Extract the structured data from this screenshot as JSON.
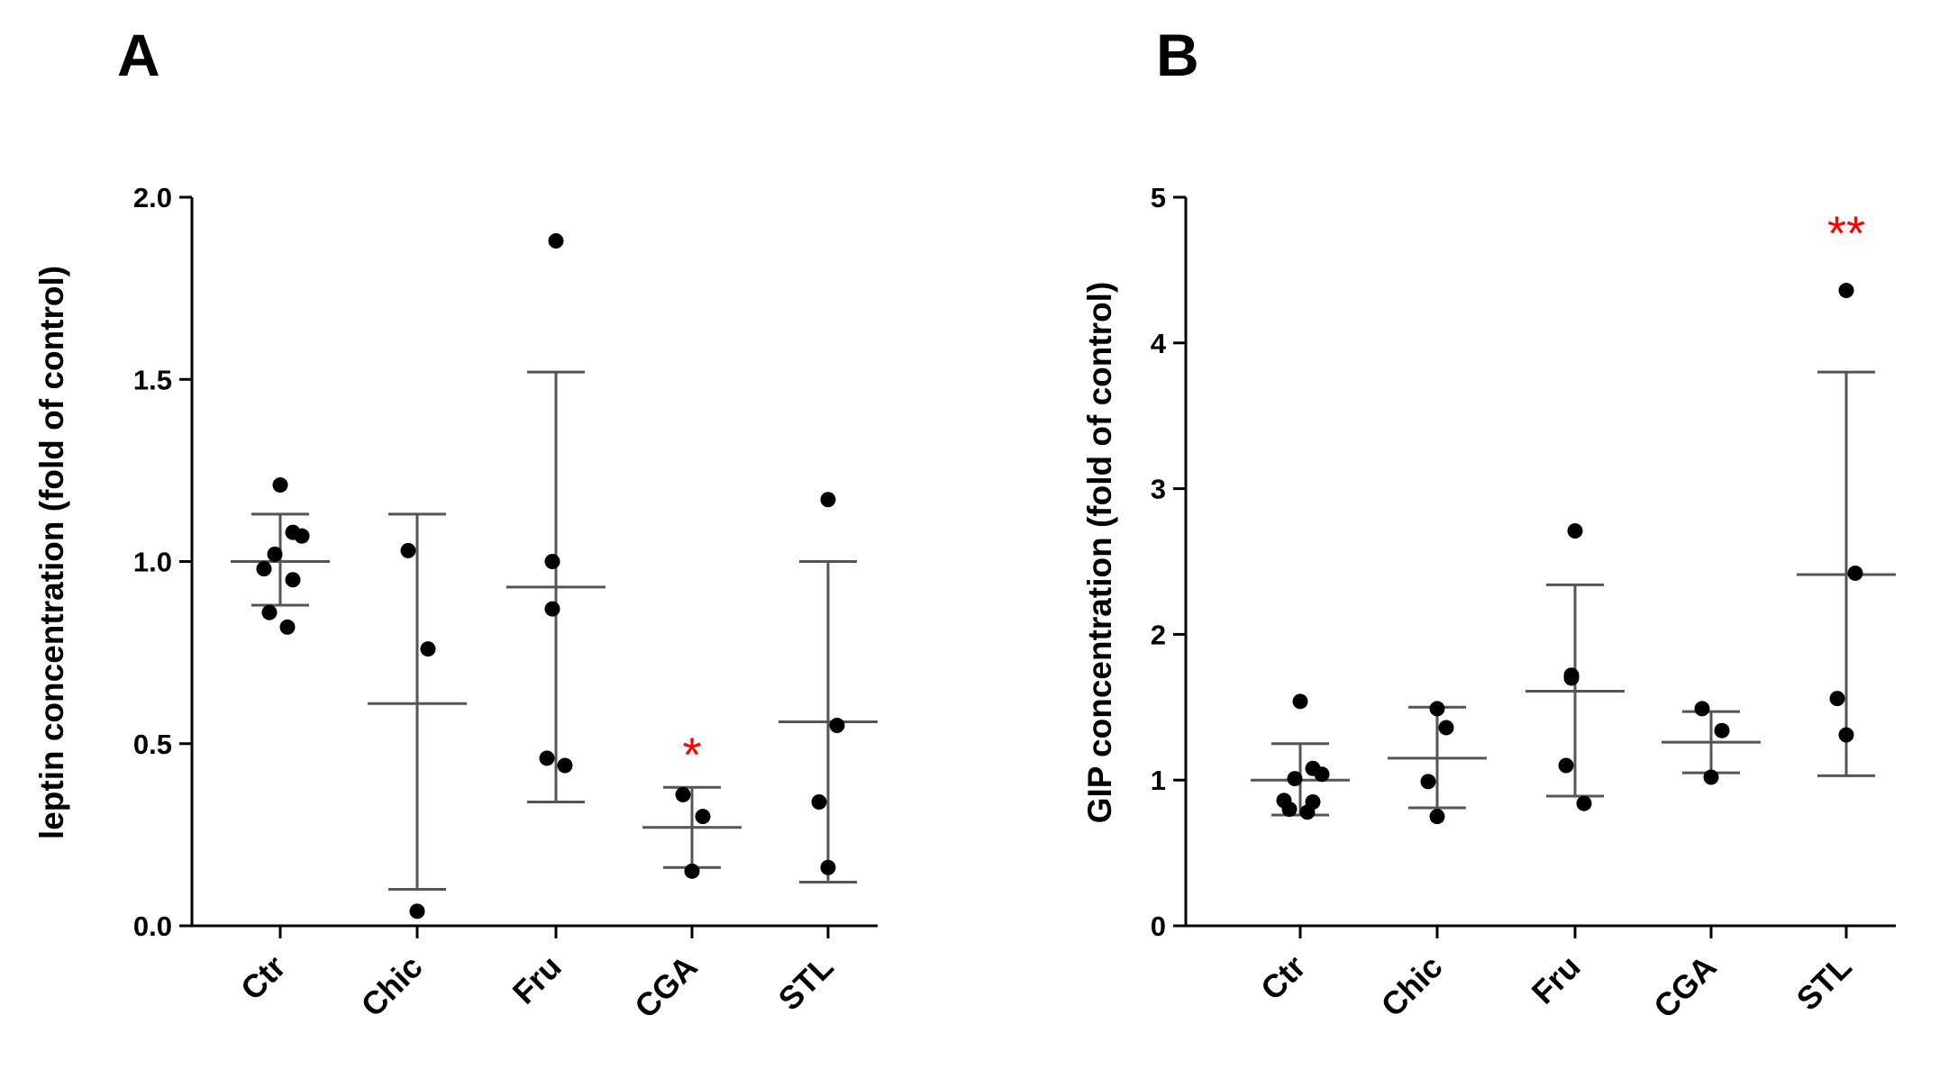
{
  "chart_data": [
    {
      "type": "scatter",
      "panel": "A",
      "ylabel": "leptin concentration (fold of control)",
      "xlabel": "",
      "ylim": [
        0,
        2.0
      ],
      "yticks": [
        0.0,
        0.5,
        1.0,
        1.5,
        2.0
      ],
      "ytick_labels": [
        "0.0",
        "0.5",
        "1.0",
        "1.5",
        "2.0"
      ],
      "categories": [
        "Ctr",
        "Chic",
        "Fru",
        "CGA",
        "STL"
      ],
      "groups": [
        {
          "name": "Ctr",
          "points": [
            1.21,
            1.08,
            1.07,
            1.02,
            0.98,
            0.95,
            0.86,
            0.82
          ],
          "mean": 1.0,
          "sd_low": 0.88,
          "sd_high": 1.13,
          "significance": ""
        },
        {
          "name": "Chic",
          "points": [
            1.03,
            0.76,
            0.04
          ],
          "mean": 0.61,
          "sd_low": 0.1,
          "sd_high": 1.13,
          "significance": ""
        },
        {
          "name": "Fru",
          "points": [
            1.88,
            1.0,
            0.87,
            0.46,
            0.44
          ],
          "mean": 0.93,
          "sd_low": 0.34,
          "sd_high": 1.52,
          "significance": ""
        },
        {
          "name": "CGA",
          "points": [
            0.36,
            0.3,
            0.15
          ],
          "mean": 0.27,
          "sd_low": 0.16,
          "sd_high": 0.38,
          "significance": "*"
        },
        {
          "name": "STL",
          "points": [
            1.17,
            0.55,
            0.34,
            0.16
          ],
          "mean": 0.56,
          "sd_low": 0.12,
          "sd_high": 1.0,
          "significance": ""
        }
      ],
      "significance_color": "#ff0000"
    },
    {
      "type": "scatter",
      "panel": "B",
      "ylabel": "GIP concentration  (fold of control)",
      "xlabel": "",
      "ylim": [
        0,
        5
      ],
      "yticks": [
        0,
        1,
        2,
        3,
        4,
        5
      ],
      "ytick_labels": [
        "0",
        "1",
        "2",
        "3",
        "4",
        "5"
      ],
      "categories": [
        "Ctr",
        "Chic",
        "Fru",
        "CGA",
        "STL"
      ],
      "groups": [
        {
          "name": "Ctr",
          "points": [
            1.54,
            1.08,
            1.04,
            1.01,
            0.86,
            0.85,
            0.8,
            0.78
          ],
          "mean": 1.0,
          "sd_low": 0.76,
          "sd_high": 1.25,
          "significance": ""
        },
        {
          "name": "Chic",
          "points": [
            1.49,
            1.36,
            0.99,
            0.75
          ],
          "mean": 1.15,
          "sd_low": 0.81,
          "sd_high": 1.5,
          "significance": ""
        },
        {
          "name": "Fru",
          "points": [
            2.71,
            1.72,
            1.7,
            1.1,
            0.84
          ],
          "mean": 1.61,
          "sd_low": 0.89,
          "sd_high": 2.34,
          "significance": ""
        },
        {
          "name": "CGA",
          "points": [
            1.49,
            1.34,
            1.02
          ],
          "mean": 1.26,
          "sd_low": 1.05,
          "sd_high": 1.47,
          "significance": ""
        },
        {
          "name": "STL",
          "points": [
            4.36,
            2.42,
            1.56,
            1.31
          ],
          "mean": 2.41,
          "sd_low": 1.03,
          "sd_high": 3.8,
          "significance": "**"
        }
      ],
      "significance_color": "#ff0000"
    }
  ]
}
